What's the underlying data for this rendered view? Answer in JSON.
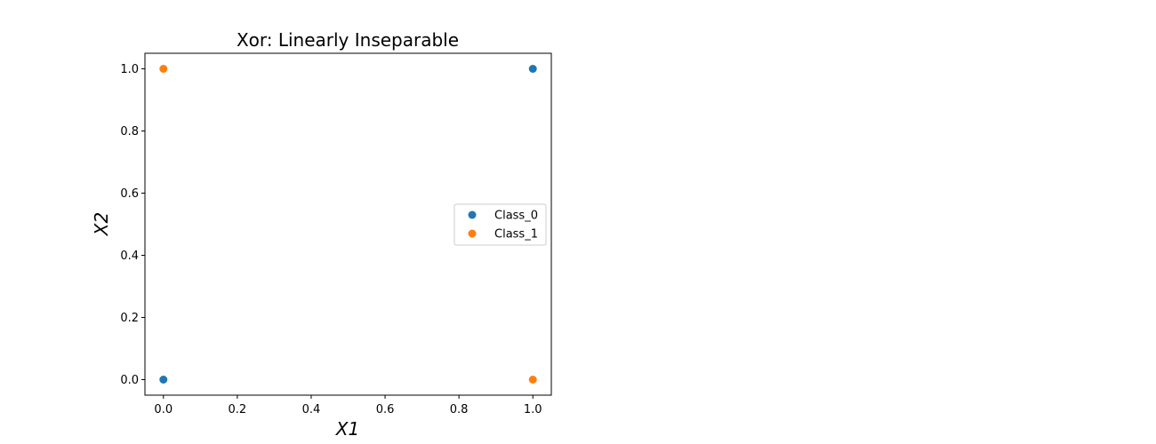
{
  "chart_data": {
    "type": "scatter",
    "title": "Xor: Linearly Inseparable",
    "xlabel": "X1",
    "ylabel": "X2",
    "xlim": [
      -0.05,
      1.05
    ],
    "ylim": [
      -0.05,
      1.05
    ],
    "x_ticks": [
      0.0,
      0.2,
      0.4,
      0.6,
      0.8,
      1.0
    ],
    "y_ticks": [
      0.0,
      0.2,
      0.4,
      0.6,
      0.8,
      1.0
    ],
    "x_tick_labels": [
      "0.0",
      "0.2",
      "0.4",
      "0.6",
      "0.8",
      "1.0"
    ],
    "y_tick_labels": [
      "0.0",
      "0.2",
      "0.4",
      "0.6",
      "0.8",
      "1.0"
    ],
    "grid": false,
    "legend_position": "center-right",
    "series": [
      {
        "name": "Class_0",
        "color": "#1f77b4",
        "points": [
          {
            "x": 0,
            "y": 0
          },
          {
            "x": 1,
            "y": 1
          }
        ]
      },
      {
        "name": "Class_1",
        "color": "#ff7f0e",
        "points": [
          {
            "x": 0,
            "y": 1
          },
          {
            "x": 1,
            "y": 0
          }
        ]
      }
    ]
  }
}
